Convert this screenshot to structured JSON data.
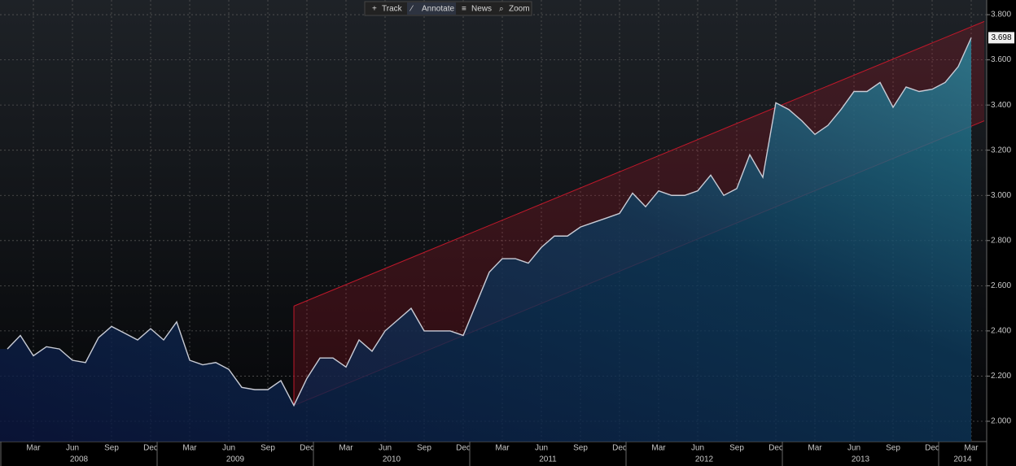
{
  "toolbar": [
    "Track",
    "Annotate",
    "News",
    "Zoom"
  ],
  "chart_data": {
    "type": "area",
    "color": "#c9ccd6",
    "x": [
      "2008-01",
      "2008-02",
      "2008-03",
      "2008-04",
      "2008-05",
      "2008-06",
      "2008-07",
      "2008-08",
      "2008-09",
      "2008-10",
      "2008-11",
      "2008-12",
      "2009-01",
      "2009-02",
      "2009-03",
      "2009-04",
      "2009-05",
      "2009-06",
      "2009-07",
      "2009-08",
      "2009-09",
      "2009-10",
      "2009-11",
      "2009-12",
      "2010-01",
      "2010-02",
      "2010-03",
      "2010-04",
      "2010-05",
      "2010-06",
      "2010-07",
      "2010-08",
      "2010-09",
      "2010-10",
      "2010-11",
      "2010-12",
      "2011-01",
      "2011-02",
      "2011-03",
      "2011-04",
      "2011-05",
      "2011-06",
      "2011-07",
      "2011-08",
      "2011-09",
      "2011-10",
      "2011-11",
      "2011-12",
      "2012-01",
      "2012-02",
      "2012-03",
      "2012-04",
      "2012-05",
      "2012-06",
      "2012-07",
      "2012-08",
      "2012-09",
      "2012-10",
      "2012-11",
      "2012-12",
      "2013-01",
      "2013-02",
      "2013-03",
      "2013-04",
      "2013-05",
      "2013-06",
      "2013-07",
      "2013-08",
      "2013-09",
      "2013-10",
      "2013-11",
      "2013-12",
      "2014-01",
      "2014-02",
      "2014-03"
    ],
    "values": [
      2.32,
      2.38,
      2.29,
      2.33,
      2.32,
      2.27,
      2.26,
      2.37,
      2.42,
      2.39,
      2.36,
      2.41,
      2.36,
      2.44,
      2.27,
      2.25,
      2.26,
      2.23,
      2.15,
      2.14,
      2.14,
      2.18,
      2.07,
      2.19,
      2.28,
      2.28,
      2.24,
      2.36,
      2.31,
      2.4,
      2.45,
      2.5,
      2.4,
      2.4,
      2.4,
      2.38,
      2.52,
      2.66,
      2.72,
      2.72,
      2.7,
      2.77,
      2.82,
      2.82,
      2.86,
      2.88,
      2.9,
      2.92,
      3.01,
      2.95,
      3.02,
      3.0,
      3.0,
      3.02,
      3.09,
      3.0,
      3.03,
      3.18,
      3.08,
      3.41,
      3.38,
      3.33,
      3.27,
      3.31,
      3.38,
      3.46,
      3.46,
      3.5,
      3.39,
      3.48,
      3.46,
      3.47,
      3.5,
      3.57,
      3.698
    ],
    "xlim": [
      "2007-12",
      "2014-04"
    ],
    "xticks": [
      {
        "value": "2008-03",
        "label": "Mar"
      },
      {
        "value": "2008-06",
        "label": "Jun"
      },
      {
        "value": "2008-09",
        "label": "Sep"
      },
      {
        "value": "2008-12",
        "label": "Dec"
      },
      {
        "value": "2009-03",
        "label": "Mar"
      },
      {
        "value": "2009-06",
        "label": "Jun"
      },
      {
        "value": "2009-09",
        "label": "Sep"
      },
      {
        "value": "2009-12",
        "label": "Dec"
      },
      {
        "value": "2010-03",
        "label": "Mar"
      },
      {
        "value": "2010-06",
        "label": "Jun"
      },
      {
        "value": "2010-09",
        "label": "Sep"
      },
      {
        "value": "2010-12",
        "label": "Dec"
      },
      {
        "value": "2011-03",
        "label": "Mar"
      },
      {
        "value": "2011-06",
        "label": "Jun"
      },
      {
        "value": "2011-09",
        "label": "Sep"
      },
      {
        "value": "2011-12",
        "label": "Dec"
      },
      {
        "value": "2012-03",
        "label": "Mar"
      },
      {
        "value": "2012-06",
        "label": "Jun"
      },
      {
        "value": "2012-09",
        "label": "Sep"
      },
      {
        "value": "2012-12",
        "label": "Dec"
      },
      {
        "value": "2013-03",
        "label": "Mar"
      },
      {
        "value": "2013-06",
        "label": "Jun"
      },
      {
        "value": "2013-09",
        "label": "Sep"
      },
      {
        "value": "2013-12",
        "label": "Dec"
      },
      {
        "value": "2014-03",
        "label": "Mar"
      }
    ],
    "years": [
      2008,
      2009,
      2010,
      2011,
      2012,
      2013,
      2014
    ],
    "ylim": [
      1.91,
      3.865
    ],
    "yticks": [
      {
        "value": 2.0,
        "label": "2.000"
      },
      {
        "value": 2.2,
        "label": "2.200"
      },
      {
        "value": 2.4,
        "label": "2.400"
      },
      {
        "value": 2.6,
        "label": "2.600"
      },
      {
        "value": 2.8,
        "label": "2.800"
      },
      {
        "value": 3.0,
        "label": "3.000"
      },
      {
        "value": 3.2,
        "label": "3.200"
      },
      {
        "value": 3.4,
        "label": "3.400"
      },
      {
        "value": 3.6,
        "label": "3.600"
      },
      {
        "value": 3.8,
        "label": "3.800"
      }
    ],
    "grid": true,
    "channel": {
      "start": "2009-11",
      "lower": [
        2.07,
        3.33
      ],
      "upper": [
        2.51,
        3.77
      ],
      "color": "#c0182a"
    }
  }
}
